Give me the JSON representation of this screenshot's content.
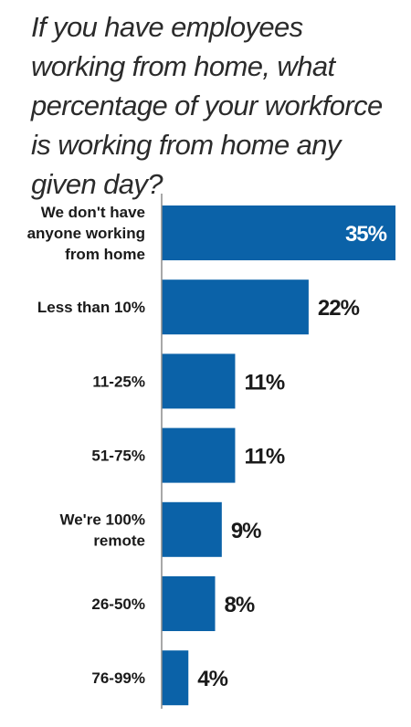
{
  "chart_data": {
    "type": "bar",
    "orientation": "horizontal",
    "title": "If you have employees working from home, what percentage of your workforce is working from home any given day?",
    "categories": [
      "We don't have anyone working from home",
      "Less than 10%",
      "11-25%",
      "51-75%",
      "We're 100% remote",
      "26-50%",
      "76-99%"
    ],
    "category_lines": [
      [
        "We don't have",
        "anyone working",
        "from home"
      ],
      [
        "Less than 10%"
      ],
      [
        "11-25%"
      ],
      [
        "51-75%"
      ],
      [
        "We're 100%",
        "remote"
      ],
      [
        "26-50%"
      ],
      [
        "76-99%"
      ]
    ],
    "values": [
      35,
      22,
      11,
      11,
      9,
      8,
      4
    ],
    "value_labels": [
      "35%",
      "22%",
      "11%",
      "11%",
      "9%",
      "8%",
      "4%"
    ],
    "value_label_inside": [
      true,
      false,
      false,
      false,
      false,
      false,
      false
    ],
    "xlim": [
      0,
      35
    ],
    "grid": false,
    "legend": "none",
    "colors": {
      "bar": "#0b62a8",
      "axis": "#8c8c8c",
      "title": "#2b2b2b",
      "label": "#1a1a1a",
      "value_inside": "#ffffff",
      "value_outside": "#1a1a1a"
    }
  }
}
